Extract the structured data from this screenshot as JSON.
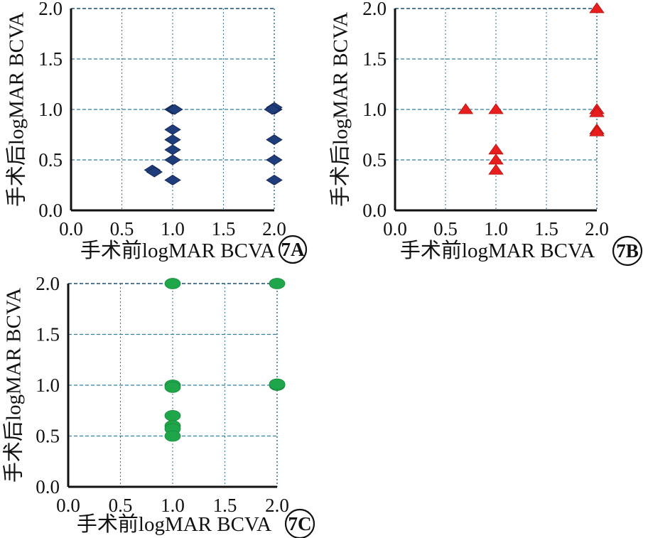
{
  "chart_data": [
    {
      "id": "7A",
      "type": "scatter",
      "marker": "diamond",
      "color": "#1f3d7a",
      "xlabel": "手术前logMAR BCVA",
      "ylabel": "手术后logMAR BCVA",
      "badge": "7A",
      "xlim": [
        0,
        2
      ],
      "ylim": [
        0,
        2
      ],
      "xticks": [
        "0.0",
        "0.5",
        "1.0",
        "1.5",
        "2.0"
      ],
      "yticks": [
        "0.0",
        "0.5",
        "1.0",
        "1.5",
        "2.0"
      ],
      "points": [
        {
          "x": 0.8,
          "y": 0.4
        },
        {
          "x": 0.82,
          "y": 0.38
        },
        {
          "x": 1.0,
          "y": 1.0
        },
        {
          "x": 1.02,
          "y": 1.0
        },
        {
          "x": 1.0,
          "y": 0.8
        },
        {
          "x": 1.0,
          "y": 0.7
        },
        {
          "x": 1.0,
          "y": 0.6
        },
        {
          "x": 1.0,
          "y": 0.5
        },
        {
          "x": 1.0,
          "y": 0.3
        },
        {
          "x": 2.0,
          "y": 1.0
        },
        {
          "x": 2.0,
          "y": 1.02
        },
        {
          "x": 1.98,
          "y": 1.0
        },
        {
          "x": 2.0,
          "y": 0.7
        },
        {
          "x": 2.0,
          "y": 0.5
        },
        {
          "x": 2.0,
          "y": 0.3
        }
      ]
    },
    {
      "id": "7B",
      "type": "scatter",
      "marker": "triangle",
      "color": "#e81e1e",
      "xlabel": "手术前logMAR BCVA",
      "ylabel": "手术后logMAR BCVA",
      "badge": "7B",
      "xlim": [
        0,
        2
      ],
      "ylim": [
        0,
        2
      ],
      "xticks": [
        "0.0",
        "0.5",
        "1.0",
        "1.5",
        "2.0"
      ],
      "yticks": [
        "0.0",
        "0.5",
        "1.0",
        "1.5",
        "2.0"
      ],
      "points": [
        {
          "x": 0.7,
          "y": 1.0
        },
        {
          "x": 1.0,
          "y": 1.0
        },
        {
          "x": 1.0,
          "y": 0.6
        },
        {
          "x": 1.0,
          "y": 0.5
        },
        {
          "x": 1.0,
          "y": 0.4
        },
        {
          "x": 2.0,
          "y": 2.0
        },
        {
          "x": 2.0,
          "y": 1.0
        },
        {
          "x": 2.0,
          "y": 0.97
        },
        {
          "x": 2.0,
          "y": 0.8
        },
        {
          "x": 2.0,
          "y": 0.78
        }
      ]
    },
    {
      "id": "7C",
      "type": "scatter",
      "marker": "circle",
      "color": "#1fa64a",
      "xlabel": "手术前logMAR BCVA",
      "ylabel": "手术后logMAR BCVA",
      "badge": "7C",
      "xlim": [
        0,
        2
      ],
      "ylim": [
        0,
        2
      ],
      "xticks": [
        "0.0",
        "0.5",
        "1.0",
        "1.5",
        "2.0"
      ],
      "yticks": [
        "0.0",
        "0.5",
        "1.0",
        "1.5",
        "2.0"
      ],
      "points": [
        {
          "x": 1.0,
          "y": 2.0
        },
        {
          "x": 2.0,
          "y": 2.0
        },
        {
          "x": 1.0,
          "y": 1.0
        },
        {
          "x": 1.0,
          "y": 0.98
        },
        {
          "x": 2.0,
          "y": 1.0
        },
        {
          "x": 2.0,
          "y": 1.01
        },
        {
          "x": 1.0,
          "y": 0.7
        },
        {
          "x": 1.0,
          "y": 0.6
        },
        {
          "x": 1.0,
          "y": 0.57
        },
        {
          "x": 1.0,
          "y": 0.5
        }
      ]
    }
  ]
}
